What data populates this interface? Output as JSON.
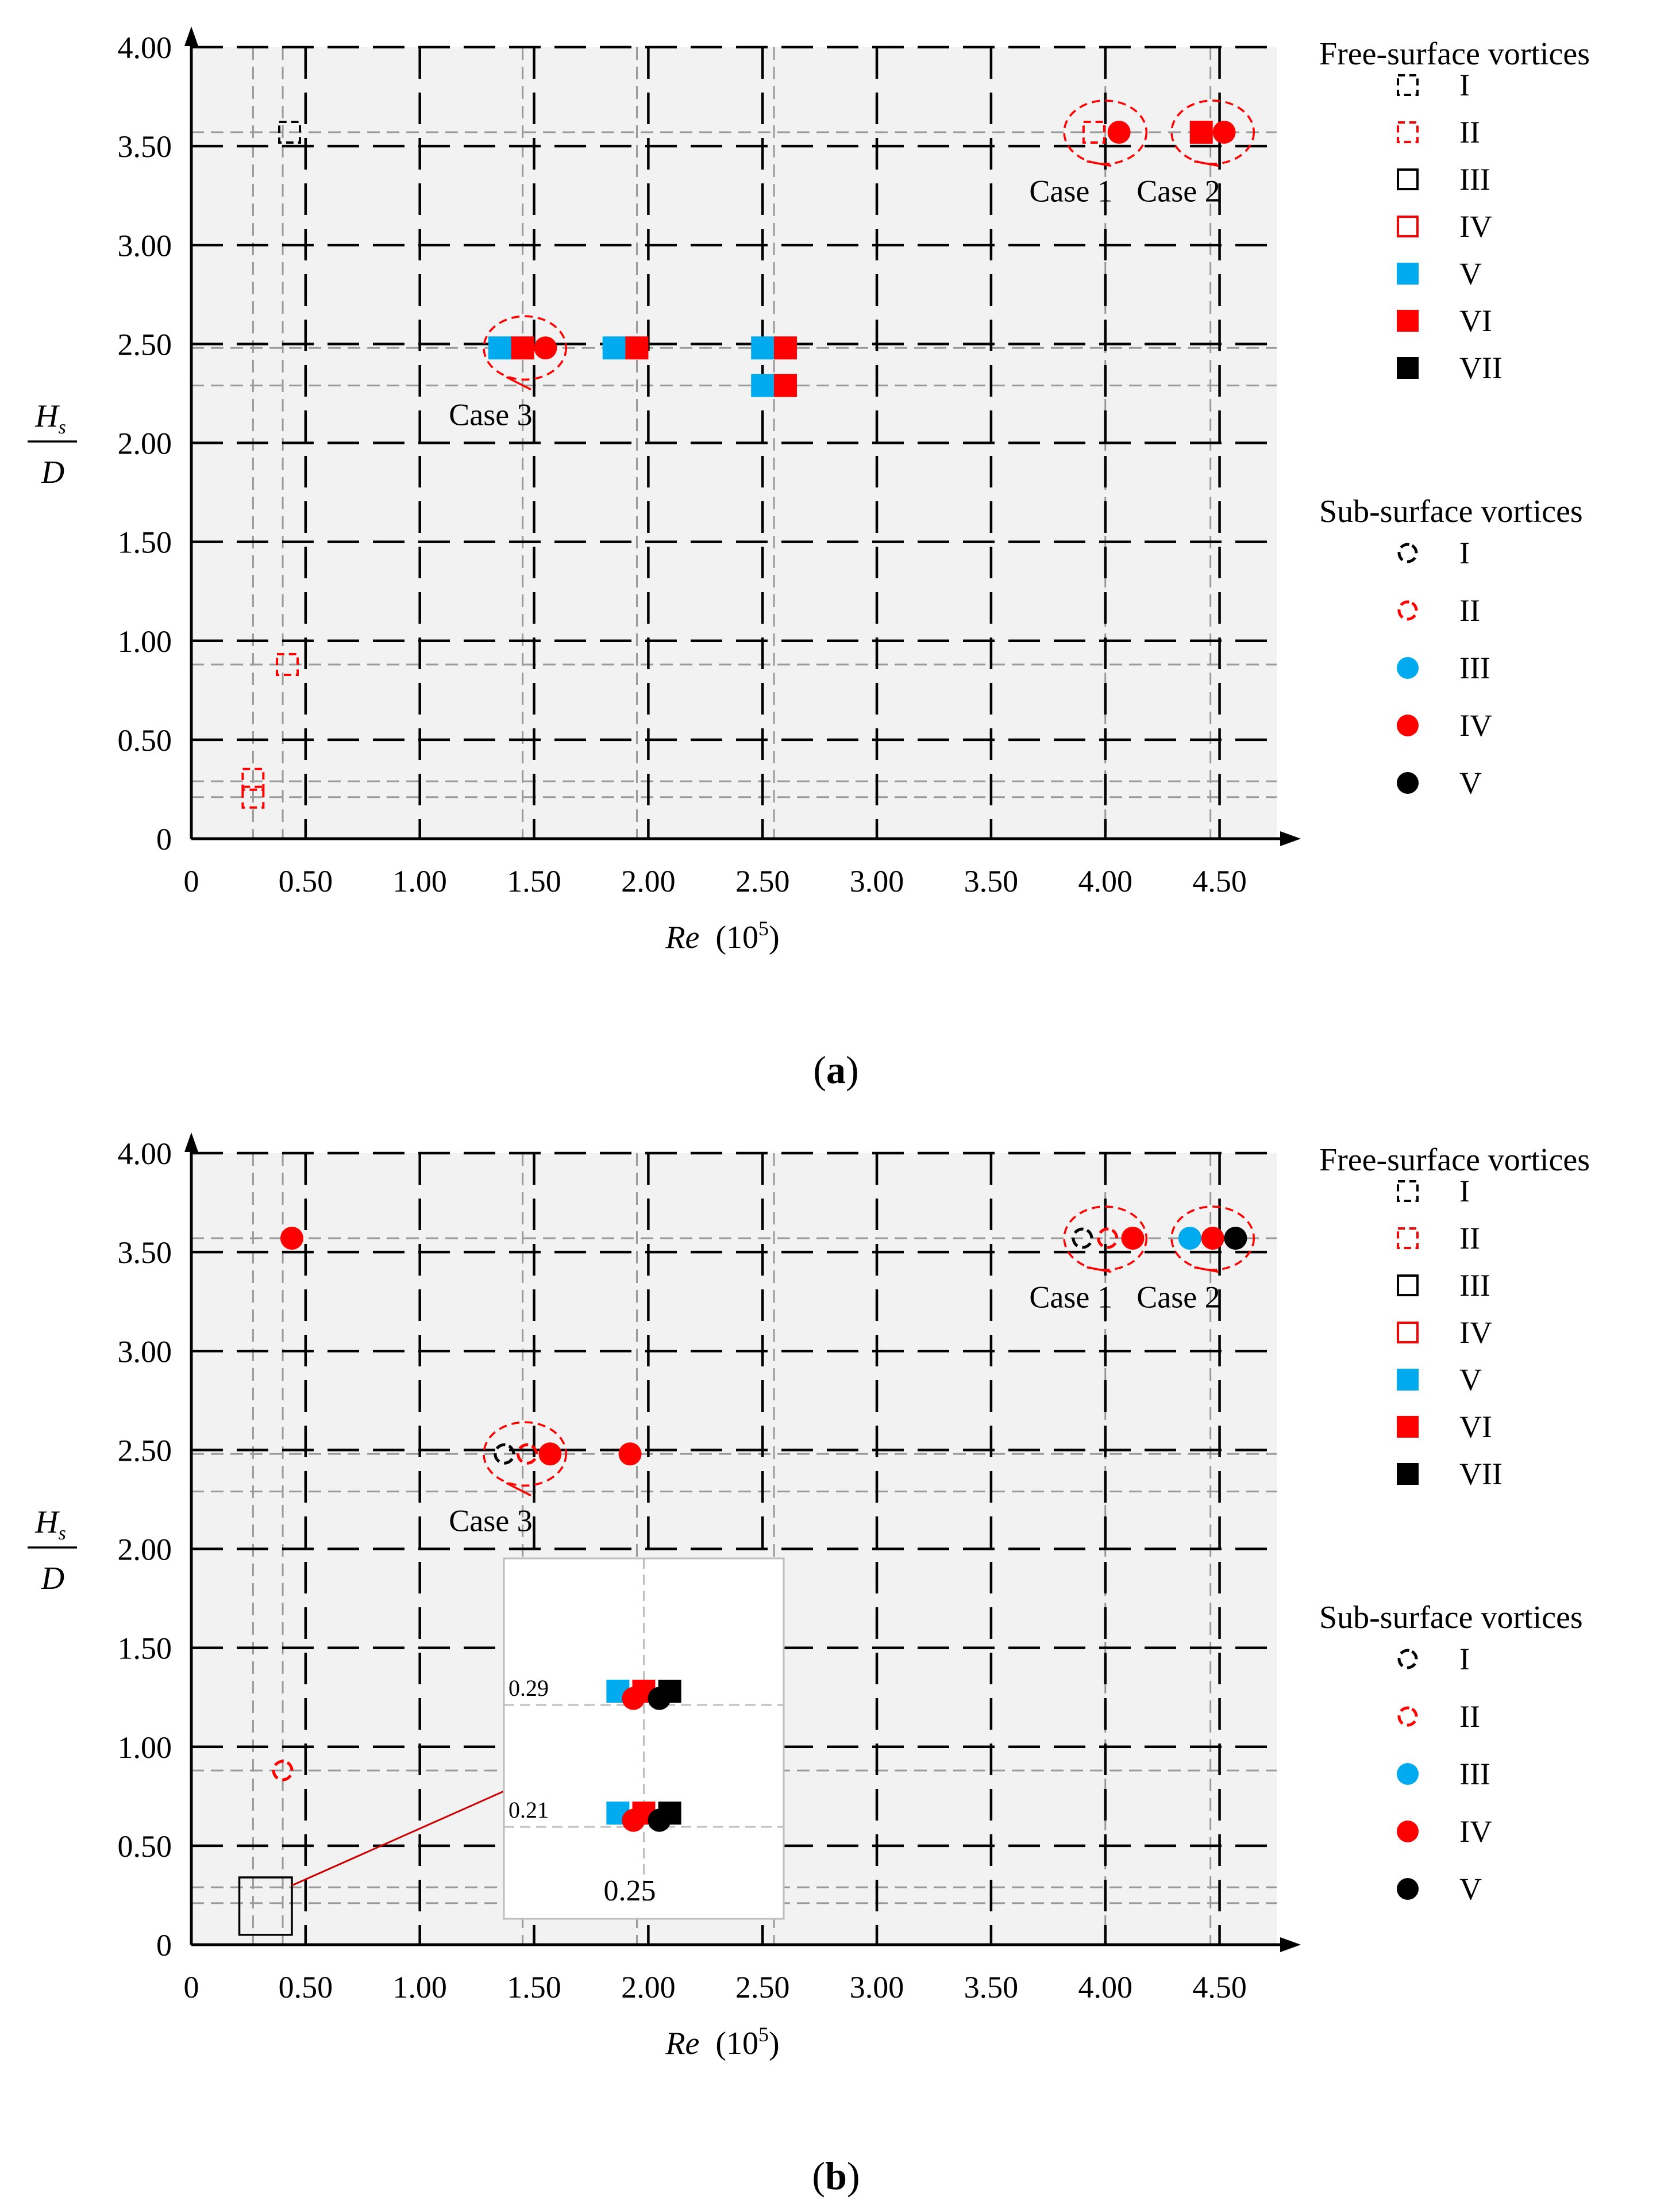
{
  "colors": {
    "cyan": "#00aaee",
    "red": "#ff0000",
    "black": "#000000",
    "plot_bg": "#f2f2f2"
  },
  "legend": {
    "free_title": "Free-surface vortices",
    "free_items": [
      {
        "label": "I",
        "marker": "square-dashed",
        "color": "#000000"
      },
      {
        "label": "II",
        "marker": "square-dashed",
        "color": "#ff0000"
      },
      {
        "label": "III",
        "marker": "square-open",
        "color": "#000000"
      },
      {
        "label": "IV",
        "marker": "square-open",
        "color": "#ff0000"
      },
      {
        "label": "V",
        "marker": "square-filled",
        "color": "#00aaee"
      },
      {
        "label": "VI",
        "marker": "square-filled",
        "color": "#ff0000"
      },
      {
        "label": "VII",
        "marker": "square-filled",
        "color": "#000000"
      }
    ],
    "sub_title": "Sub-surface vortices",
    "sub_items": [
      {
        "label": "I",
        "marker": "circle-dashed",
        "color": "#000000"
      },
      {
        "label": "II",
        "marker": "circle-dashed",
        "color": "#ff0000"
      },
      {
        "label": "III",
        "marker": "circle-filled",
        "color": "#00aaee"
      },
      {
        "label": "IV",
        "marker": "circle-filled",
        "color": "#ff0000"
      },
      {
        "label": "V",
        "marker": "circle-filled",
        "color": "#000000"
      }
    ]
  },
  "panels": {
    "a": {
      "caption_letter": "a"
    },
    "b": {
      "caption_letter": "b"
    }
  },
  "chart_data": [
    {
      "id": "a",
      "type": "scatter",
      "xlabel": "Re",
      "xlabel_unit": "(10",
      "xlabel_exp": "5",
      "ylabel_num": "H",
      "ylabel_sub": "s",
      "ylabel_den": "D",
      "xlim": [
        0,
        4.75
      ],
      "ylim": [
        0,
        4.0
      ],
      "x_ticks": [
        {
          "v": 0,
          "t": "0"
        },
        {
          "v": 0.5,
          "t": "0.50"
        },
        {
          "v": 1.0,
          "t": "1.00"
        },
        {
          "v": 1.5,
          "t": "1.50"
        },
        {
          "v": 2.0,
          "t": "2.00"
        },
        {
          "v": 2.5,
          "t": "2.50"
        },
        {
          "v": 3.0,
          "t": "3.00"
        },
        {
          "v": 3.5,
          "t": "3.50"
        },
        {
          "v": 4.0,
          "t": "4.00"
        },
        {
          "v": 4.5,
          "t": "4.50"
        }
      ],
      "y_ticks": [
        {
          "v": 0,
          "t": "0"
        },
        {
          "v": 0.5,
          "t": "0.50"
        },
        {
          "v": 1.0,
          "t": "1.00"
        },
        {
          "v": 1.5,
          "t": "1.50"
        },
        {
          "v": 2.0,
          "t": "2.00"
        },
        {
          "v": 2.5,
          "t": "2.50"
        },
        {
          "v": 3.0,
          "t": "3.00"
        },
        {
          "v": 3.5,
          "t": "3.50"
        },
        {
          "v": 4.0,
          "t": "4.00"
        }
      ],
      "thin_x": [
        0.27,
        0.4,
        1.45,
        1.95,
        2.55,
        4.0,
        4.46
      ],
      "thin_y": [
        0.21,
        0.29,
        0.88,
        2.29,
        2.48,
        3.57
      ],
      "points": [
        {
          "x": 0.43,
          "y": 3.57,
          "m": "square-dashed",
          "c": "#000000"
        },
        {
          "x": 0.42,
          "y": 0.88,
          "m": "square-dashed",
          "c": "#ff0000"
        },
        {
          "x": 0.27,
          "y": 0.3,
          "m": "square-dashed",
          "c": "#ff0000"
        },
        {
          "x": 0.27,
          "y": 0.21,
          "m": "square-dashed",
          "c": "#ff0000"
        },
        {
          "x": 1.35,
          "y": 2.48,
          "m": "square-filled",
          "c": "#00aaee"
        },
        {
          "x": 1.45,
          "y": 2.48,
          "m": "square-filled",
          "c": "#ff0000"
        },
        {
          "x": 1.55,
          "y": 2.48,
          "m": "circle-filled",
          "c": "#ff0000"
        },
        {
          "x": 1.85,
          "y": 2.48,
          "m": "square-filled",
          "c": "#00aaee"
        },
        {
          "x": 1.95,
          "y": 2.48,
          "m": "square-filled",
          "c": "#ff0000"
        },
        {
          "x": 2.5,
          "y": 2.48,
          "m": "square-filled",
          "c": "#00aaee"
        },
        {
          "x": 2.6,
          "y": 2.48,
          "m": "square-filled",
          "c": "#ff0000"
        },
        {
          "x": 2.5,
          "y": 2.29,
          "m": "square-filled",
          "c": "#00aaee"
        },
        {
          "x": 2.6,
          "y": 2.29,
          "m": "square-filled",
          "c": "#ff0000"
        },
        {
          "x": 3.95,
          "y": 3.57,
          "m": "square-dashed",
          "c": "#ff0000"
        },
        {
          "x": 4.06,
          "y": 3.57,
          "m": "circle-filled",
          "c": "#ff0000"
        },
        {
          "x": 4.42,
          "y": 3.57,
          "m": "square-filled",
          "c": "#ff0000"
        },
        {
          "x": 4.52,
          "y": 3.57,
          "m": "circle-filled",
          "c": "#ff0000"
        }
      ],
      "annotations": [
        {
          "text": "Case 1",
          "ex": 4.0,
          "ey": 3.57,
          "rx": 0.18,
          "ry": 0.16,
          "tx": 3.85,
          "ty": 3.22
        },
        {
          "text": "Case 2",
          "ex": 4.47,
          "ey": 3.57,
          "rx": 0.18,
          "ry": 0.16,
          "tx": 4.32,
          "ty": 3.22
        },
        {
          "text": "Case 3",
          "ex": 1.46,
          "ey": 2.48,
          "rx": 0.18,
          "ry": 0.16,
          "tx": 1.31,
          "ty": 2.09
        }
      ],
      "inset": null
    },
    {
      "id": "b",
      "type": "scatter",
      "xlabel": "Re",
      "xlabel_unit": "(10",
      "xlabel_exp": "5",
      "ylabel_num": "H",
      "ylabel_sub": "s",
      "ylabel_den": "D",
      "xlim": [
        0,
        4.75
      ],
      "ylim": [
        0,
        4.0
      ],
      "x_ticks": [
        {
          "v": 0,
          "t": "0"
        },
        {
          "v": 0.5,
          "t": "0.50"
        },
        {
          "v": 1.0,
          "t": "1.00"
        },
        {
          "v": 1.5,
          "t": "1.50"
        },
        {
          "v": 2.0,
          "t": "2.00"
        },
        {
          "v": 2.5,
          "t": "2.50"
        },
        {
          "v": 3.0,
          "t": "3.00"
        },
        {
          "v": 3.5,
          "t": "3.50"
        },
        {
          "v": 4.0,
          "t": "4.00"
        },
        {
          "v": 4.5,
          "t": "4.50"
        }
      ],
      "y_ticks": [
        {
          "v": 0,
          "t": "0"
        },
        {
          "v": 0.5,
          "t": "0.50"
        },
        {
          "v": 1.0,
          "t": "1.00"
        },
        {
          "v": 1.5,
          "t": "1.50"
        },
        {
          "v": 2.0,
          "t": "2.00"
        },
        {
          "v": 2.5,
          "t": "2.50"
        },
        {
          "v": 3.0,
          "t": "3.00"
        },
        {
          "v": 3.5,
          "t": "3.50"
        },
        {
          "v": 4.0,
          "t": "4.00"
        }
      ],
      "thin_x": [
        0.27,
        0.4,
        1.45,
        1.95,
        2.55,
        4.0,
        4.46
      ],
      "thin_y": [
        0.21,
        0.29,
        0.88,
        2.29,
        2.48,
        3.57
      ],
      "points": [
        {
          "x": 0.44,
          "y": 3.57,
          "m": "circle-filled",
          "c": "#ff0000"
        },
        {
          "x": 0.4,
          "y": 0.88,
          "m": "circle-dashed",
          "c": "#ff0000"
        },
        {
          "x": 1.37,
          "y": 2.48,
          "m": "circle-dashed",
          "c": "#000000"
        },
        {
          "x": 1.47,
          "y": 2.48,
          "m": "circle-dashed",
          "c": "#ff0000"
        },
        {
          "x": 1.57,
          "y": 2.48,
          "m": "circle-filled",
          "c": "#ff0000"
        },
        {
          "x": 1.92,
          "y": 2.48,
          "m": "circle-filled",
          "c": "#ff0000"
        },
        {
          "x": 3.9,
          "y": 3.57,
          "m": "circle-dashed",
          "c": "#000000"
        },
        {
          "x": 4.01,
          "y": 3.57,
          "m": "circle-dashed",
          "c": "#ff0000"
        },
        {
          "x": 4.12,
          "y": 3.57,
          "m": "circle-filled",
          "c": "#ff0000"
        },
        {
          "x": 4.37,
          "y": 3.57,
          "m": "circle-filled",
          "c": "#00aaee"
        },
        {
          "x": 4.47,
          "y": 3.57,
          "m": "circle-filled",
          "c": "#ff0000"
        },
        {
          "x": 4.57,
          "y": 3.57,
          "m": "circle-filled",
          "c": "#000000"
        }
      ],
      "annotations": [
        {
          "text": "Case 1",
          "ex": 4.0,
          "ey": 3.57,
          "rx": 0.18,
          "ry": 0.16,
          "tx": 3.85,
          "ty": 3.22
        },
        {
          "text": "Case 2",
          "ex": 4.47,
          "ey": 3.57,
          "rx": 0.18,
          "ry": 0.16,
          "tx": 4.32,
          "ty": 3.22
        },
        {
          "text": "Case 3",
          "ex": 1.46,
          "ey": 2.48,
          "rx": 0.18,
          "ry": 0.16,
          "tx": 1.31,
          "ty": 2.09
        }
      ],
      "inset": {
        "source_x": [
          0.21,
          0.44
        ],
        "source_y": [
          0.05,
          0.34
        ],
        "row_labels": [
          {
            "v": 0.29,
            "t": "0.29"
          },
          {
            "v": 0.21,
            "t": "0.21"
          }
        ],
        "col_label": "0.25",
        "points": [
          {
            "x": 0.245,
            "y": 0.29,
            "m": "square-filled",
            "c": "#00aaee"
          },
          {
            "x": 0.25,
            "y": 0.29,
            "m": "square-filled",
            "c": "#ff0000"
          },
          {
            "x": 0.255,
            "y": 0.29,
            "m": "square-filled",
            "c": "#000000"
          },
          {
            "x": 0.248,
            "y": 0.283,
            "m": "circle-filled",
            "c": "#ff0000"
          },
          {
            "x": 0.253,
            "y": 0.283,
            "m": "circle-filled",
            "c": "#000000"
          },
          {
            "x": 0.245,
            "y": 0.21,
            "m": "square-filled",
            "c": "#00aaee"
          },
          {
            "x": 0.25,
            "y": 0.21,
            "m": "square-filled",
            "c": "#ff0000"
          },
          {
            "x": 0.255,
            "y": 0.21,
            "m": "square-filled",
            "c": "#000000"
          },
          {
            "x": 0.248,
            "y": 0.203,
            "m": "circle-filled",
            "c": "#ff0000"
          },
          {
            "x": 0.253,
            "y": 0.203,
            "m": "circle-filled",
            "c": "#000000"
          }
        ]
      }
    }
  ]
}
